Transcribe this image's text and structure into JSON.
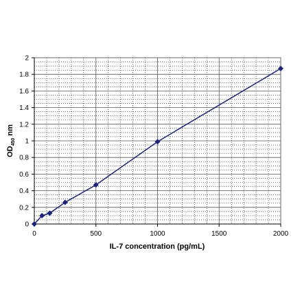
{
  "chart_data": {
    "type": "line",
    "xlabel": "IL-7 concentration (pg/mL)",
    "ylabel": {
      "main": "OD",
      "sub": "450",
      "unit": " nm"
    },
    "xlim": [
      0,
      2000
    ],
    "ylim": [
      0,
      2
    ],
    "x_ticks": [
      0,
      500,
      1000,
      1500,
      2000
    ],
    "y_ticks": [
      0,
      0.2,
      0.4,
      0.6,
      0.8,
      1,
      1.2,
      1.4,
      1.6,
      1.8,
      2
    ],
    "x_tick_labels": [
      "0",
      "500",
      "1000",
      "1500",
      "2000"
    ],
    "y_tick_labels": [
      "0",
      "0.2",
      "0.4",
      "0.6",
      "0.8",
      "1",
      "1.2",
      "1.4",
      "1.6",
      "1.8",
      "2"
    ],
    "grid": true,
    "series": [
      {
        "color": "#1a237e",
        "marker": "diamond",
        "x": [
          0,
          62.5,
          125,
          250,
          500,
          1000,
          2000
        ],
        "y": [
          0.0,
          0.1,
          0.13,
          0.26,
          0.47,
          0.99,
          1.87
        ]
      }
    ]
  }
}
